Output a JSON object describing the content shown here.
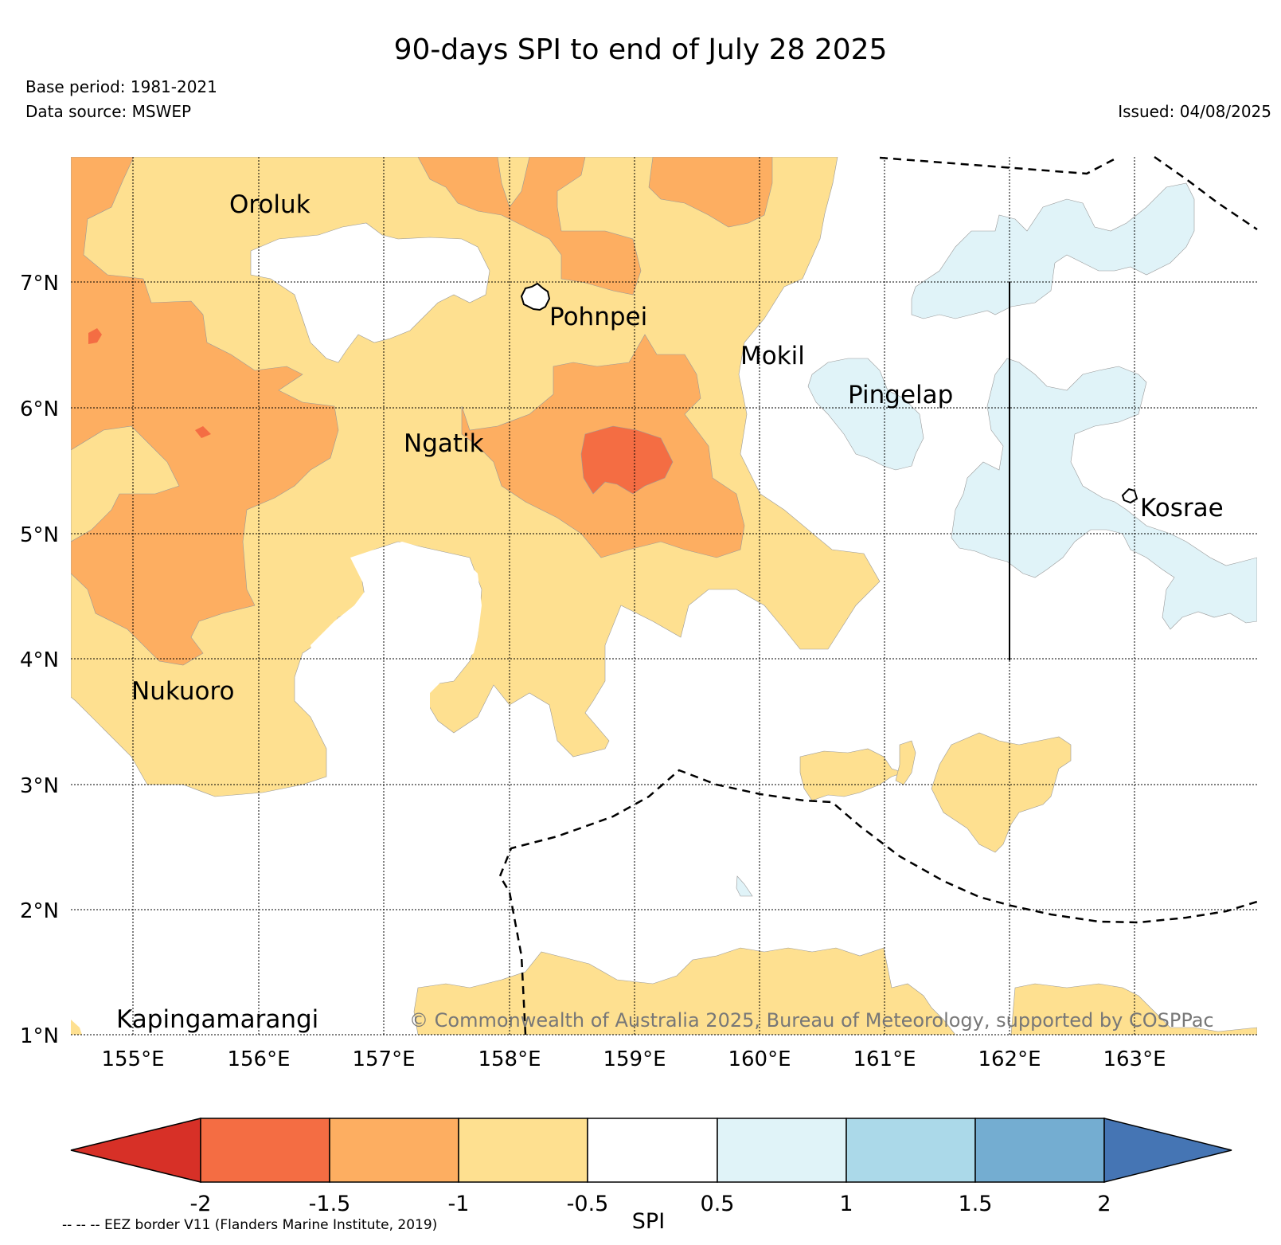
{
  "title": "90-days SPI to end of July 28 2025",
  "base_period": "Base period: 1981-2021",
  "data_source": "Data source: MSWEP",
  "issued": "Issued: 04/08/2025",
  "copyright": "© Commonwealth of Australia 2025, Bureau of Meteorology, supported by COSPPac",
  "eez_note": "-- -- -- EEZ border V11 (Flanders Marine Institute, 2019)",
  "map": {
    "lon_range": [
      154.5,
      164
    ],
    "lat_range": [
      1,
      8
    ],
    "lat_ticks": [
      "7°N",
      "6°N",
      "5°N",
      "4°N",
      "3°N",
      "2°N",
      "1°N"
    ],
    "lon_ticks": [
      "155°E",
      "156°E",
      "157°E",
      "158°E",
      "159°E",
      "160°E",
      "161°E",
      "162°E",
      "163°E"
    ],
    "places": [
      "Oroluk",
      "Pohnpei",
      "Mokil",
      "Pingelap",
      "Ngatik",
      "Kosrae",
      "Nukuoro",
      "Kapingamarangi"
    ]
  },
  "colorbar": {
    "label": "SPI",
    "ticks": [
      "-2",
      "-1.5",
      "-1",
      "-0.5",
      "0.5",
      "1",
      "1.5",
      "2"
    ],
    "colors": [
      "#d73027",
      "#f46d43",
      "#fdae61",
      "#fee090",
      "#ffffff",
      "#e0f3f8",
      "#abd9e9",
      "#74add1",
      "#4575b4"
    ]
  },
  "colors": {
    "dry_severe": "#f46d43",
    "dry_moderate": "#fdae61",
    "dry_mild": "#fee090",
    "normal": "#ffffff",
    "wet_mild": "#e0f3f8"
  }
}
